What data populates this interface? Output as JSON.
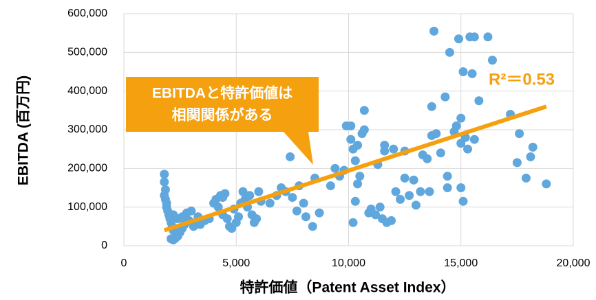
{
  "chart_data": {
    "type": "scatter",
    "xlabel": "特許価値（Patent Asset Index）",
    "ylabel": "EBITDA (百万円)",
    "color": "#5fa7dc",
    "trend_color": "#f5a00f",
    "grid": true,
    "xlim": [
      0,
      20000
    ],
    "ylim": [
      0,
      600000
    ],
    "xticks": [
      0,
      {
        "value": 5000,
        "label": "5,000"
      },
      {
        "value": 10000,
        "label": "10,000"
      },
      {
        "value": 15000,
        "label": "15,000"
      },
      {
        "value": 20000,
        "label": "20,000"
      }
    ],
    "yticks": [
      0,
      {
        "value": 100000,
        "label": "100,000"
      },
      {
        "value": 200000,
        "label": "200,000"
      },
      {
        "value": 300000,
        "label": "300,000"
      },
      {
        "value": 400000,
        "label": "400,000"
      },
      {
        "value": 500000,
        "label": "500,000"
      },
      {
        "value": 600000,
        "label": "600,000"
      }
    ],
    "x": [
      1800,
      1800,
      1850,
      1800,
      1850,
      1900,
      1900,
      1950,
      2000,
      2050,
      2100,
      2150,
      2200,
      2100,
      2200,
      2300,
      2400,
      2500,
      2600,
      2200,
      2400,
      2600,
      2800,
      3000,
      2700,
      2900,
      3200,
      3100,
      3400,
      3600,
      3300,
      3800,
      4000,
      4100,
      4200,
      4300,
      4400,
      4500,
      4400,
      4600,
      4700,
      4800,
      4900,
      5000,
      5200,
      5100,
      5300,
      5400,
      5500,
      5600,
      5700,
      5800,
      5900,
      6000,
      6100,
      6500,
      6800,
      7000,
      7200,
      7500,
      7400,
      7800,
      7700,
      8000,
      8100,
      8400,
      8700,
      8500,
      9200,
      9400,
      9600,
      9800,
      9900,
      10100,
      10100,
      10200,
      10300,
      10400,
      10300,
      10200,
      10500,
      10400,
      10600,
      10700,
      10700,
      10900,
      11000,
      11200,
      11300,
      11400,
      11500,
      11600,
      11600,
      11700,
      11900,
      12000,
      12100,
      12300,
      12500,
      12500,
      12700,
      12900,
      13000,
      13200,
      13300,
      13500,
      13600,
      13700,
      13700,
      13800,
      13900,
      14100,
      14300,
      14400,
      14400,
      14500,
      14700,
      14800,
      14900,
      15000,
      15000,
      15000,
      15100,
      15100,
      15200,
      15300,
      15400,
      15500,
      15600,
      15600,
      15800,
      16200,
      16400,
      17200,
      17500,
      17600,
      17900,
      18100,
      18200,
      18800
    ],
    "y": [
      185000,
      165000,
      145000,
      130000,
      120000,
      110000,
      100000,
      90000,
      80000,
      70000,
      60000,
      50000,
      40000,
      18000,
      15000,
      20000,
      25000,
      35000,
      45000,
      80000,
      70000,
      75000,
      85000,
      90000,
      55000,
      65000,
      60000,
      50000,
      55000,
      65000,
      75000,
      70000,
      110000,
      120000,
      100000,
      130000,
      125000,
      135000,
      80000,
      70000,
      50000,
      45000,
      95000,
      60000,
      110000,
      75000,
      140000,
      120000,
      100000,
      130000,
      80000,
      60000,
      70000,
      140000,
      115000,
      110000,
      130000,
      150000,
      140000,
      125000,
      230000,
      155000,
      90000,
      110000,
      75000,
      50000,
      85000,
      175000,
      155000,
      200000,
      180000,
      195000,
      310000,
      310000,
      275000,
      250000,
      220000,
      260000,
      115000,
      60000,
      180000,
      160000,
      290000,
      300000,
      350000,
      85000,
      95000,
      80000,
      210000,
      100000,
      70000,
      260000,
      245000,
      60000,
      65000,
      250000,
      140000,
      120000,
      175000,
      245000,
      130000,
      170000,
      105000,
      140000,
      235000,
      225000,
      140000,
      285000,
      360000,
      555000,
      290000,
      240000,
      385000,
      180000,
      150000,
      500000,
      295000,
      310000,
      535000,
      330000,
      265000,
      150000,
      450000,
      115000,
      280000,
      250000,
      540000,
      445000,
      540000,
      275000,
      375000,
      540000,
      480000,
      340000,
      215000,
      290000,
      175000,
      230000,
      255000,
      160000
    ],
    "trendline": {
      "x": [
        1800,
        18800
      ],
      "y": [
        40000,
        360000
      ]
    },
    "annotation": {
      "lines": [
        "EBITDAと特許価値は",
        "相関関係がある"
      ]
    },
    "r2_label": "R²＝0.53"
  }
}
